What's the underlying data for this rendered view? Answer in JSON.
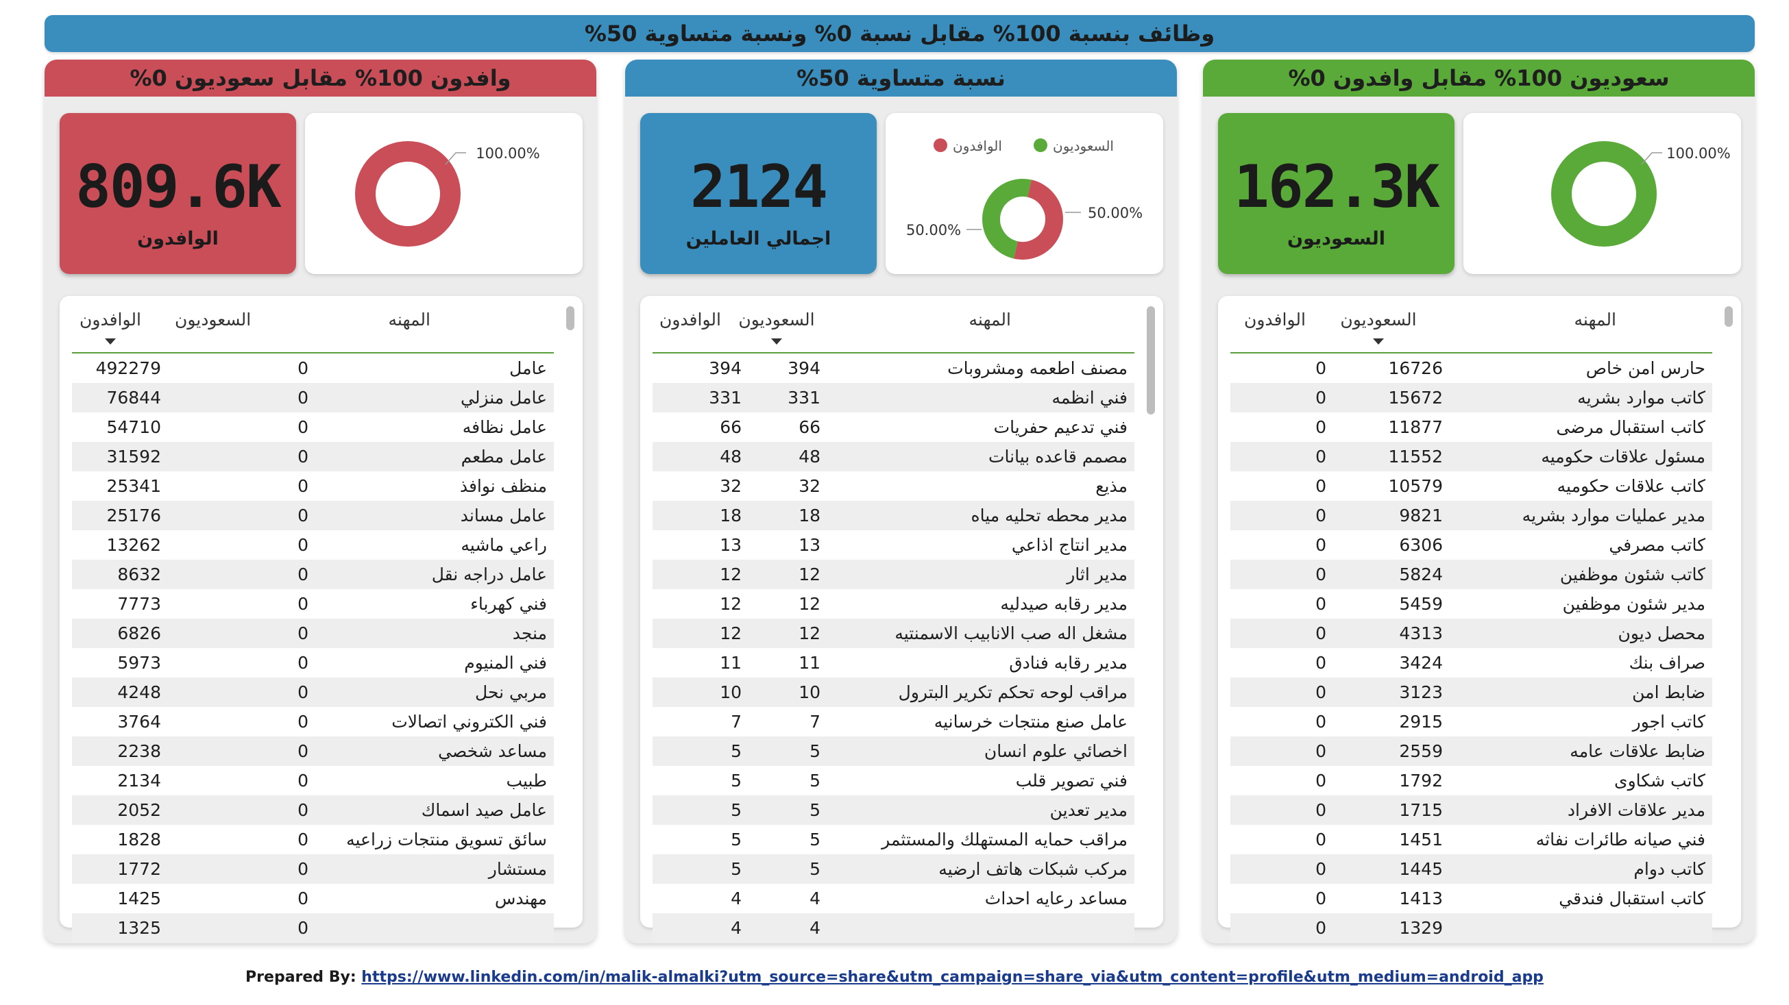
{
  "banner": {
    "title": "وظائف بنسبة 100% مقابل نسبة 0% ونسبة متساوية 50%"
  },
  "colors": {
    "expat": "#c94e58",
    "equal": "#3a8ebd",
    "saudi": "#5aaa3a"
  },
  "panels": [
    {
      "id": "expat",
      "title": "وافدون 100% مقابل سعوديون 0%",
      "kpi_value": "809.6K",
      "kpi_label": "الوافدون",
      "donut_label": "100.00%",
      "columns": {
        "job": "المهنه",
        "saudi": "السعوديون",
        "expat": "الوافدون"
      },
      "sorted_column": "expat",
      "scroll": {
        "position": 0.0,
        "visible": 0.04
      },
      "rows": [
        [
          "عامل",
          "0",
          "492279"
        ],
        [
          "عامل منزلي",
          "0",
          "76844"
        ],
        [
          "عامل نظافه",
          "0",
          "54710"
        ],
        [
          "عامل مطعم",
          "0",
          "31592"
        ],
        [
          "منظف نوافذ",
          "0",
          "25341"
        ],
        [
          "عامل مساند",
          "0",
          "25176"
        ],
        [
          "راعي ماشيه",
          "0",
          "13262"
        ],
        [
          "عامل دراجه نقل",
          "0",
          "8632"
        ],
        [
          "فني كهرباء",
          "0",
          "7773"
        ],
        [
          "منجد",
          "0",
          "6826"
        ],
        [
          "فني المنيوم",
          "0",
          "5973"
        ],
        [
          "مربي نحل",
          "0",
          "4248"
        ],
        [
          "فني الكتروني اتصالات",
          "0",
          "3764"
        ],
        [
          "مساعد شخصي",
          "0",
          "2238"
        ],
        [
          "طبيب",
          "0",
          "2134"
        ],
        [
          "عامل صيد اسماك",
          "0",
          "2052"
        ],
        [
          "سائق تسويق منتجات زراعيه",
          "0",
          "1828"
        ],
        [
          "مستشار",
          "0",
          "1772"
        ],
        [
          "مهندس",
          "0",
          "1425"
        ],
        [
          "",
          "0",
          "1325"
        ]
      ]
    },
    {
      "id": "equal",
      "title": "نسبة متساوية 50%",
      "kpi_value": "2124",
      "kpi_label": "اجمالي العاملين",
      "donut_label_top": "50.00%",
      "donut_label_bottom": "50.00%",
      "legend": [
        {
          "name": "الوافدون",
          "color": "#c94e58"
        },
        {
          "name": "السعوديون",
          "color": "#5aaa3a"
        }
      ],
      "donut_shares": [
        0.5,
        0.5
      ],
      "columns": {
        "job": "المهنه",
        "saudi": "السعوديون",
        "expat": "الوافدون"
      },
      "sorted_column": "saudi",
      "scroll": {
        "position": 0.0,
        "visible": 0.18
      },
      "rows": [
        [
          "مصنف اطعمه ومشروبات",
          "394",
          "394"
        ],
        [
          "فني انظمه",
          "331",
          "331"
        ],
        [
          "فني تدعيم حفريات",
          "66",
          "66"
        ],
        [
          "مصمم قاعده بيانات",
          "48",
          "48"
        ],
        [
          "مذيع",
          "32",
          "32"
        ],
        [
          "مدير محطه تحليه مياه",
          "18",
          "18"
        ],
        [
          "مدير انتاج اذاعي",
          "13",
          "13"
        ],
        [
          "مدير اثار",
          "12",
          "12"
        ],
        [
          "مدير رقابه صيدليه",
          "12",
          "12"
        ],
        [
          "مشغل اله صب الانابيب الاسمنتيه",
          "12",
          "12"
        ],
        [
          "مدير رقابه فنادق",
          "11",
          "11"
        ],
        [
          "مراقب لوحه تحكم تكرير البترول",
          "10",
          "10"
        ],
        [
          "عامل صنع منتجات خرسانيه",
          "7",
          "7"
        ],
        [
          "اخصائي علوم انسان",
          "5",
          "5"
        ],
        [
          "فني تصوير قلب",
          "5",
          "5"
        ],
        [
          "مدير تعدين",
          "5",
          "5"
        ],
        [
          "مراقب حمايه المستهلك والمستثمر",
          "5",
          "5"
        ],
        [
          "مركب شبكات هاتف ارضيه",
          "5",
          "5"
        ],
        [
          "مساعد رعايه احداث",
          "4",
          "4"
        ],
        [
          "",
          "4",
          "4"
        ]
      ]
    },
    {
      "id": "saudi",
      "title": "سعوديون 100% مقابل وافدون 0%",
      "kpi_value": "162.3K",
      "kpi_label": "السعوديون",
      "donut_label": "100.00%",
      "columns": {
        "job": "المهنه",
        "saudi": "السعوديون",
        "expat": "الوافدون"
      },
      "sorted_column": "saudi",
      "scroll": {
        "position": 0.0,
        "visible": 0.03
      },
      "rows": [
        [
          "حارس امن خاص",
          "16726",
          "0"
        ],
        [
          "كاتب موارد بشريه",
          "15672",
          "0"
        ],
        [
          "كاتب استقبال مرضى",
          "11877",
          "0"
        ],
        [
          "مسئول علاقات حكوميه",
          "11552",
          "0"
        ],
        [
          "كاتب علاقات حكوميه",
          "10579",
          "0"
        ],
        [
          "مدير عمليات موارد بشريه",
          "9821",
          "0"
        ],
        [
          "كاتب مصرفي",
          "6306",
          "0"
        ],
        [
          "كاتب شئون موظفين",
          "5824",
          "0"
        ],
        [
          "مدير شئون موظفين",
          "5459",
          "0"
        ],
        [
          "محصل ديون",
          "4313",
          "0"
        ],
        [
          "صراف بنك",
          "3424",
          "0"
        ],
        [
          "ضابط امن",
          "3123",
          "0"
        ],
        [
          "كاتب اجور",
          "2915",
          "0"
        ],
        [
          "ضابط علاقات عامه",
          "2559",
          "0"
        ],
        [
          "كاتب شكاوى",
          "1792",
          "0"
        ],
        [
          "مدير علاقات الافراد",
          "1715",
          "0"
        ],
        [
          "فني صيانه طائرات نفاثه",
          "1451",
          "0"
        ],
        [
          "كاتب دوام",
          "1445",
          "0"
        ],
        [
          "كاتب استقبال فندقي",
          "1413",
          "0"
        ],
        [
          "",
          "1329",
          "0"
        ]
      ]
    }
  ],
  "footer": {
    "prefix": "Prepared By:",
    "link": "https://www.linkedin.com/in/malik-almalki?utm_source=share&utm_campaign=share_via&utm_content=profile&utm_medium=android_app"
  }
}
